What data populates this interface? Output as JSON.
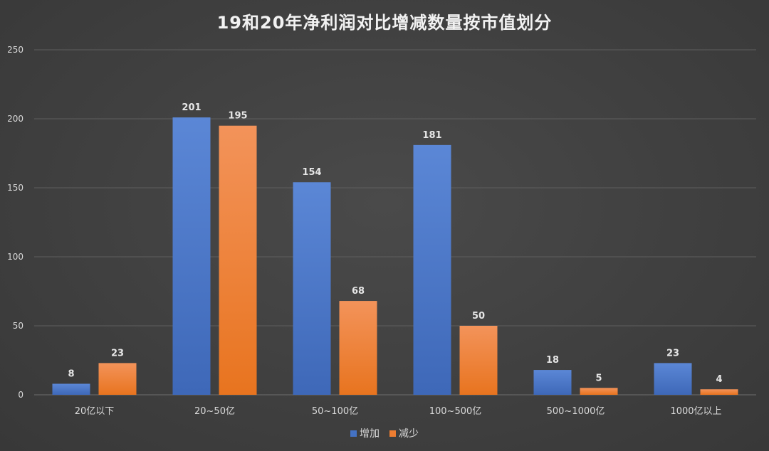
{
  "chart_data": {
    "type": "bar",
    "title": "19和20年净利润对比增减数量按市值划分",
    "xlabel": "",
    "ylabel": "",
    "ylim": [
      0,
      250
    ],
    "yticks": [
      0,
      50,
      100,
      150,
      200,
      250
    ],
    "grid": true,
    "legend_position": "bottom",
    "categories": [
      "20亿以下",
      "20~50亿",
      "50~100亿",
      "100~500亿",
      "500~1000亿",
      "1000亿以上"
    ],
    "series": [
      {
        "name": "增加",
        "color": "#4472c4",
        "values": [
          8,
          201,
          154,
          181,
          18,
          23
        ]
      },
      {
        "name": "减少",
        "color": "#ed7d31",
        "values": [
          23,
          195,
          68,
          50,
          5,
          4
        ]
      }
    ]
  }
}
